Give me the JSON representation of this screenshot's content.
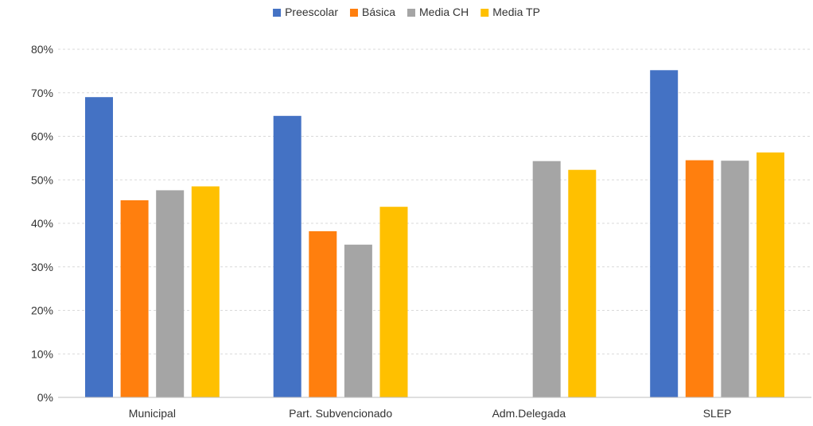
{
  "chart_data": {
    "type": "bar",
    "title": "",
    "xlabel": "",
    "ylabel": "",
    "categories": [
      "Municipal",
      "Part. Subvencionado",
      "Adm.Delegada",
      "SLEP"
    ],
    "series": [
      {
        "name": "Preescolar",
        "color": "#4472C4",
        "values": [
          69,
          64.7,
          null,
          75.2
        ]
      },
      {
        "name": "Básica",
        "color": "#FF7F0E",
        "values": [
          45.3,
          38.2,
          null,
          54.5
        ]
      },
      {
        "name": "Media CH",
        "color": "#A5A5A5",
        "values": [
          47.6,
          35.1,
          54.3,
          54.4
        ]
      },
      {
        "name": "Media TP",
        "color": "#FFC000",
        "values": [
          48.5,
          43.8,
          52.3,
          56.3
        ]
      }
    ],
    "ylim": [
      0,
      80
    ],
    "yticks": [
      0,
      10,
      20,
      30,
      40,
      50,
      60,
      70,
      80
    ],
    "ytick_labels": [
      "0%",
      "10%",
      "20%",
      "30%",
      "40%",
      "50%",
      "60%",
      "70%",
      "80%"
    ],
    "grid": true,
    "legend_position": "top-center"
  }
}
